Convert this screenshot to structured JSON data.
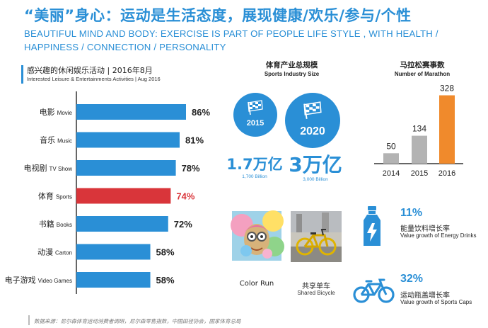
{
  "header": {
    "title_cn": "“美丽”身心：运动是生活态度，展现健康/欢乐/参与/个性",
    "title_en": "BEAUTIFUL MIND AND BODY: EXERCISE IS PART OF PEOPLE  LIFE STYLE , WITH HEALTH / HAPPINESS / CONNECTION / PERSONALITY"
  },
  "leisure": {
    "title_cn": "感兴趣的休闲娱乐活动 | 2016年8月",
    "title_en": "Interested Leisure & Entertainments Activities | Aug 2016"
  },
  "industry": {
    "title_cn": "体育产业总规模",
    "title_en": "Sports Industry Size",
    "year_2015": "2015",
    "year_2020": "2020",
    "value_2015": "1.7万亿",
    "value_2015_en": "1,700 Billion",
    "value_2020": "3万亿",
    "value_2020_en": "3,000 Billion"
  },
  "marathon": {
    "title_cn": "马拉松赛事数",
    "title_en": "Number of Marathon"
  },
  "photos": {
    "color_run": "Color Run",
    "bicycle_cn": "共享单车",
    "bicycle_en": "Shared Bicycle"
  },
  "stats": {
    "drinks_pct": "11%",
    "drinks_cn": "能量饮料增长率",
    "drinks_en": "Value growth of Energy Drinks",
    "caps_pct": "32%",
    "caps_cn": "运动瓶盖增长率",
    "caps_en": "Value growth of Sports Caps"
  },
  "footer": {
    "source": "数据来源：尼尔森体育运动消费者调研，尼尔森零售指数，中国田径协会，国家体育总局"
  },
  "colors": {
    "blue": "#2a8fd6",
    "red": "#d9353a",
    "gray": "#b3b3b3",
    "orange": "#f08a2c"
  },
  "chart_data": [
    {
      "type": "bar",
      "orientation": "horizontal",
      "title": "感兴趣的休闲娱乐活动 | 2016年8月",
      "subtitle": "Interested Leisure & Entertainments Activities | Aug 2016",
      "categories": [
        {
          "cn": "电影",
          "en": "Movie"
        },
        {
          "cn": "音乐",
          "en": "Music"
        },
        {
          "cn": "电视剧",
          "en": "TV Show"
        },
        {
          "cn": "体育",
          "en": "Sports"
        },
        {
          "cn": "书籍",
          "en": "Books"
        },
        {
          "cn": "动漫",
          "en": "Carton"
        },
        {
          "cn": "电子游戏",
          "en": "Video Games"
        }
      ],
      "values": [
        86,
        81,
        78,
        74,
        72,
        58,
        58
      ],
      "labels": [
        "86%",
        "81%",
        "78%",
        "74%",
        "72%",
        "58%",
        "58%"
      ],
      "highlight_index": 3,
      "xlim": [
        0,
        100
      ]
    },
    {
      "type": "bar",
      "orientation": "vertical",
      "title": "马拉松赛事数",
      "subtitle": "Number of Marathon",
      "categories": [
        "2014",
        "2015",
        "2016"
      ],
      "values": [
        50,
        134,
        328
      ],
      "ylim": [
        0,
        340
      ]
    }
  ]
}
